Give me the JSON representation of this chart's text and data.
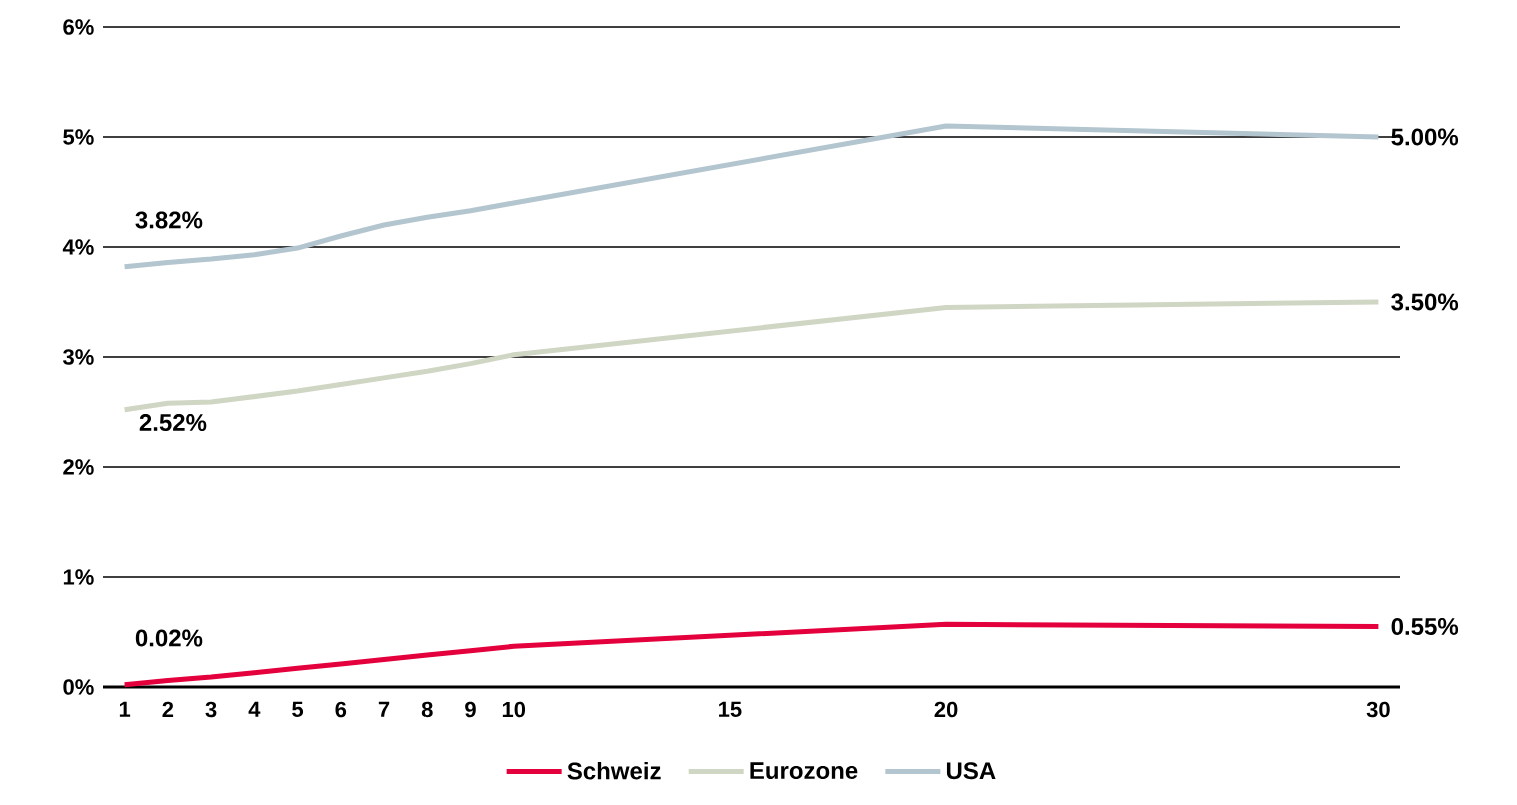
{
  "chart_data": {
    "type": "line",
    "x": [
      1,
      2,
      3,
      4,
      5,
      6,
      7,
      8,
      9,
      10,
      20,
      30
    ],
    "xlim": [
      0.5,
      30.5
    ],
    "xticks": [
      1,
      2,
      3,
      4,
      5,
      6,
      7,
      8,
      9,
      10,
      15,
      20,
      30
    ],
    "ylim": [
      0,
      6
    ],
    "yticks": [
      {
        "value": 0,
        "label": "0%"
      },
      {
        "value": 1,
        "label": "1%"
      },
      {
        "value": 2,
        "label": "2%"
      },
      {
        "value": 3,
        "label": "3%"
      },
      {
        "value": 4,
        "label": "4%"
      },
      {
        "value": 5,
        "label": "5%"
      },
      {
        "value": 6,
        "label": "6%"
      }
    ],
    "grid": "y",
    "legend": "bottom",
    "marker": "none",
    "line_style": "solid",
    "series": [
      {
        "name": "Schweiz",
        "color": "#e4003c",
        "values": [
          0.02,
          0.06,
          0.09,
          0.13,
          0.17,
          0.21,
          0.25,
          0.29,
          0.33,
          0.37,
          0.57,
          0.55
        ],
        "value_labels": [
          "0.02%",
          null,
          null,
          null,
          null,
          null,
          null,
          null,
          null,
          null,
          null,
          "0.55%"
        ]
      },
      {
        "name": "Eurozone",
        "color": "#d0d6c4",
        "values": [
          2.52,
          2.58,
          2.59,
          2.64,
          2.69,
          2.75,
          2.81,
          2.87,
          2.94,
          3.02,
          3.45,
          3.5
        ],
        "value_labels": [
          "2.52%",
          null,
          null,
          null,
          null,
          null,
          null,
          null,
          null,
          null,
          null,
          "3.50%"
        ]
      },
      {
        "name": "USA",
        "color": "#b3c5cf",
        "values": [
          3.82,
          3.86,
          3.89,
          3.93,
          3.99,
          4.1,
          4.2,
          4.27,
          4.33,
          4.4,
          5.1,
          5.0
        ],
        "value_labels": [
          "3.82%",
          null,
          null,
          null,
          null,
          null,
          null,
          null,
          null,
          null,
          null,
          "5.00%"
        ]
      }
    ]
  }
}
